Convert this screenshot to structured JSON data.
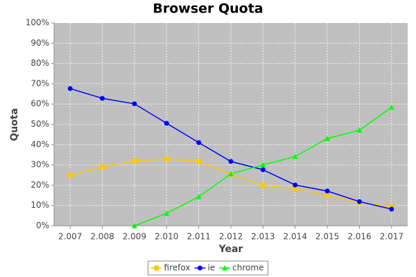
{
  "chart_data": {
    "type": "line",
    "title": "Browser Quota",
    "x_label": "Year",
    "y_label": "Quota",
    "categories": [
      "2.007",
      "2.008",
      "2.009",
      "2.010",
      "2.011",
      "2.012",
      "2.013",
      "2.014",
      "2.015",
      "2.016",
      "2.017"
    ],
    "series": [
      {
        "name": "firefox",
        "color": "#ffc800",
        "marker": "square",
        "values": [
          24.9,
          29,
          32,
          32.8,
          31.7,
          25.3,
          19.8,
          18.4,
          15,
          11.3,
          9.6
        ]
      },
      {
        "name": "ie",
        "color": "#0000ff",
        "marker": "circle",
        "values": [
          67.6,
          62.8,
          60.1,
          50.5,
          41,
          31.7,
          27.6,
          20.1,
          17.1,
          11.9,
          8.2
        ]
      },
      {
        "name": "chrome",
        "color": "#00ff00",
        "marker": "triangle",
        "values": [
          null,
          null,
          0,
          6.1,
          14.3,
          25.6,
          30,
          34.1,
          43,
          47.1,
          58.4
        ]
      }
    ],
    "ylim": [
      0,
      100
    ],
    "yticks": [
      {
        "value": 0,
        "label": "0%"
      },
      {
        "value": 10,
        "label": "10%"
      },
      {
        "value": 20,
        "label": "20%"
      },
      {
        "value": 30,
        "label": "30%"
      },
      {
        "value": 40,
        "label": "40%"
      },
      {
        "value": 50,
        "label": "50%"
      },
      {
        "value": 60,
        "label": "60%"
      },
      {
        "value": 70,
        "label": "70%"
      },
      {
        "value": 80,
        "label": "80%"
      },
      {
        "value": 90,
        "label": "90%"
      },
      {
        "value": 100,
        "label": "100%"
      }
    ],
    "grid": true,
    "legend": "bottom"
  }
}
